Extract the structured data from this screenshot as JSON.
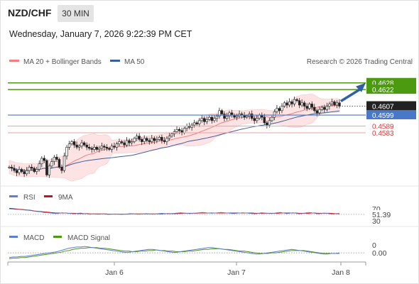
{
  "header": {
    "symbol": "NZD/CHF",
    "timeframe": "30 MIN",
    "datetime": "Wednesday, January 7, 2026 9:22:39 PM CET"
  },
  "legend": {
    "ma20": "MA 20 + Bollinger Bands",
    "ma50": "MA 50",
    "credit": "Research © 2026 Trading Central"
  },
  "colors": {
    "ma20": "#f08080",
    "ma50": "#3a5f9f",
    "resistance": "#4c9a10",
    "support": "#4a78c8",
    "level": "#e8a0a0",
    "candle": "#222222",
    "rsi": "#5b7fd6",
    "rsi_ma": "#cc1111",
    "macd": "#5b7fd6",
    "macd_signal": "#4c9a10"
  },
  "chart_data": [
    {
      "type": "candlestick",
      "title": "",
      "ylim": [
        0.4535,
        0.464
      ],
      "x_labels": [
        "Jan 6",
        "Jan 7",
        "Jan 8"
      ],
      "series": [
        {
          "name": "MA 20 + Bollinger Bands"
        },
        {
          "name": "MA 50"
        }
      ],
      "close": [
        0.4552,
        0.4551,
        0.4549,
        0.4547,
        0.455,
        0.4548,
        0.4546,
        0.4549,
        0.4552,
        0.4551,
        0.4548,
        0.455,
        0.4555,
        0.456,
        0.4558,
        0.4545,
        0.4553,
        0.4557,
        0.4561,
        0.4559,
        0.4552,
        0.4549,
        0.4562,
        0.457,
        0.4573,
        0.4575,
        0.4572,
        0.457,
        0.4571,
        0.4574,
        0.4572,
        0.457,
        0.4569,
        0.4568,
        0.457,
        0.4568,
        0.4569,
        0.4571,
        0.457,
        0.4569,
        0.4568,
        0.4571,
        0.457,
        0.4573,
        0.4575,
        0.4574,
        0.4572,
        0.4576,
        0.4574,
        0.4575,
        0.4578,
        0.458,
        0.4577,
        0.4575,
        0.4578,
        0.4576,
        0.4575,
        0.4578,
        0.4576,
        0.4577,
        0.4579,
        0.4576,
        0.4575,
        0.4578,
        0.458,
        0.4582,
        0.4584,
        0.4586,
        0.4585,
        0.4583,
        0.4587,
        0.4589,
        0.4588,
        0.459,
        0.4592,
        0.4591,
        0.4594,
        0.4596,
        0.4593,
        0.4595,
        0.4597,
        0.4594,
        0.4596,
        0.4598,
        0.4603,
        0.46,
        0.4596,
        0.4598,
        0.4601,
        0.4599,
        0.4597,
        0.4598,
        0.46,
        0.4599,
        0.4597,
        0.4598,
        0.46,
        0.4596,
        0.4594,
        0.4596,
        0.4599,
        0.4597,
        0.4592,
        0.459,
        0.4594,
        0.4597,
        0.4602,
        0.4605,
        0.4603,
        0.4607,
        0.461,
        0.4608,
        0.4611,
        0.4609,
        0.4613,
        0.4612,
        0.4608,
        0.461,
        0.4607,
        0.4605,
        0.4609,
        0.4606,
        0.4603,
        0.4601,
        0.4604,
        0.4606,
        0.4604,
        0.4607,
        0.4609,
        0.4611,
        0.4608,
        0.461,
        0.4607
      ],
      "levels": {
        "resistance_2": 0.4628,
        "resistance_1": 0.4622,
        "last": 0.4607,
        "pivot": 0.4599,
        "support_1": 0.4589,
        "support_2": 0.4583
      },
      "level_labels": {
        "resistance_2": "0.4628",
        "resistance_1": "0.4622",
        "last": "0.4607",
        "pivot": "0.4599",
        "support_1": "0.4589",
        "support_2": "0.4583"
      }
    },
    {
      "type": "line",
      "series": [
        {
          "name": "RSI",
          "current": "51.39"
        },
        {
          "name": "9MA"
        }
      ],
      "tick_labels": [
        "70",
        "30"
      ],
      "ylim": [
        20,
        80
      ],
      "rsi": [
        70,
        69,
        68,
        68,
        67,
        66,
        65,
        64,
        62,
        61,
        60,
        58,
        57,
        56,
        55,
        54,
        55,
        57,
        56,
        55,
        54,
        53,
        55,
        56,
        54,
        53,
        52,
        53,
        52,
        52,
        53,
        52,
        51,
        52,
        53,
        52,
        51,
        52,
        53,
        54,
        53,
        52,
        52,
        53,
        54,
        53,
        52,
        53,
        54,
        55,
        54,
        53,
        54,
        55,
        56,
        57,
        56,
        55,
        54,
        55,
        56,
        57,
        58,
        57,
        56,
        55,
        56,
        57,
        58,
        57,
        56,
        55,
        54,
        55,
        56,
        57,
        56,
        55,
        54,
        53,
        55,
        57,
        56,
        55,
        54,
        55,
        57,
        58,
        56,
        54,
        55,
        57,
        55,
        53,
        54,
        56,
        58,
        57,
        55,
        53,
        54,
        56,
        55,
        53,
        52,
        54,
        51.39
      ],
      "rsi_ma": [
        72,
        71,
        70,
        69,
        68,
        67,
        66,
        65,
        63,
        62,
        61,
        60,
        59,
        58,
        57,
        56,
        56,
        56,
        56,
        55,
        55,
        55,
        54,
        54,
        54,
        54,
        53,
        53,
        53,
        53,
        53,
        53,
        52,
        52,
        52,
        52,
        52,
        52,
        52,
        53,
        53,
        53,
        53,
        53,
        53,
        53,
        53,
        53,
        53,
        53,
        54,
        54,
        54,
        54,
        54,
        55,
        55,
        55,
        55,
        55,
        55,
        56,
        56,
        56,
        56,
        56,
        56,
        56,
        56,
        56,
        56,
        56,
        56,
        56,
        56,
        56,
        56,
        56,
        56,
        55,
        55,
        55,
        55,
        55,
        55,
        55,
        55,
        56,
        56,
        56,
        56,
        56,
        56,
        55,
        55,
        55,
        55,
        56,
        56,
        55,
        55,
        55,
        55,
        55,
        54,
        54,
        54
      ]
    },
    {
      "type": "line",
      "series": [
        {
          "name": "MACD",
          "current": "0.00"
        },
        {
          "name": "MACD Signal"
        }
      ],
      "tick_labels": [
        "0"
      ],
      "ylim": [
        -0.0012,
        0.0016
      ],
      "macd": [
        -0.0008,
        -0.0007,
        -0.0007,
        -0.0006,
        -0.0006,
        -0.0005,
        -0.0004,
        -0.0003,
        -0.0002,
        -0.0001,
        0.0,
        0.0001,
        0.0002,
        0.0004,
        0.0006,
        0.0008,
        0.0009,
        0.001,
        0.001,
        0.0011,
        0.001,
        0.0009,
        0.0008,
        0.0007,
        0.0006,
        0.0005,
        0.0004,
        0.0003,
        0.0002,
        0.0001,
        0.0001,
        0.0002,
        0.0003,
        0.0004,
        0.0005,
        0.0006,
        0.0006,
        0.0005,
        0.0004,
        0.0003,
        0.0002,
        0.0001,
        0.0001,
        0.0002,
        0.0003,
        0.0004,
        0.0005,
        0.0006,
        0.0007,
        0.0008,
        0.0009,
        0.0009,
        0.0008,
        0.0007,
        0.0006,
        0.0005,
        0.0004,
        0.0003,
        0.0002,
        0.0001,
        0.0,
        -0.0001,
        -0.0002,
        -0.0002,
        -0.0001,
        0.0,
        0.0001,
        0.0002,
        0.0003,
        0.0004,
        0.0005,
        0.0006,
        0.0005,
        0.0004,
        0.0003,
        0.0002,
        0.0001,
        0.0,
        -0.0001,
        -0.0002,
        -0.0002,
        -0.0001,
        -0.0001,
        0.0
      ],
      "signal": [
        -0.001,
        -0.0009,
        -0.0009,
        -0.0008,
        -0.0008,
        -0.0007,
        -0.0006,
        -0.0005,
        -0.0004,
        -0.0003,
        -0.0002,
        -0.0001,
        0.0,
        0.0001,
        0.0003,
        0.0004,
        0.0006,
        0.0007,
        0.0008,
        0.0008,
        0.0009,
        0.0009,
        0.0009,
        0.0008,
        0.0008,
        0.0007,
        0.0006,
        0.0005,
        0.0004,
        0.0003,
        0.0003,
        0.0002,
        0.0002,
        0.0003,
        0.0003,
        0.0004,
        0.0004,
        0.0005,
        0.0004,
        0.0004,
        0.0003,
        0.0003,
        0.0002,
        0.0002,
        0.0002,
        0.0003,
        0.0003,
        0.0004,
        0.0005,
        0.0006,
        0.0006,
        0.0007,
        0.0007,
        0.0007,
        0.0006,
        0.0006,
        0.0005,
        0.0004,
        0.0003,
        0.0003,
        0.0002,
        0.0001,
        0.0,
        -0.0001,
        -0.0001,
        -0.0001,
        0.0,
        0.0,
        0.0001,
        0.0002,
        0.0003,
        0.0004,
        0.0004,
        0.0004,
        0.0004,
        0.0003,
        0.0002,
        0.0001,
        0.0,
        -0.0001,
        -0.0001,
        -0.0001,
        -0.0001,
        -0.0001
      ]
    }
  ]
}
